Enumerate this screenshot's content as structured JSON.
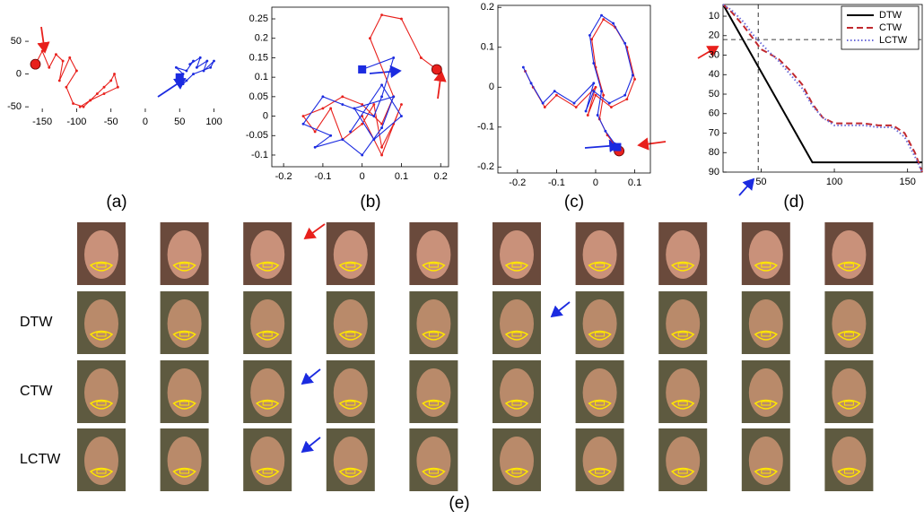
{
  "chart_data": [
    {
      "type": "line",
      "caption": "(a)",
      "box": false,
      "xlim": [
        -175,
        115
      ],
      "ylim": [
        -58,
        72
      ],
      "xticks": [
        -150,
        -100,
        -50,
        0,
        50,
        100
      ],
      "yticks": [
        -50,
        0,
        50
      ],
      "series": [
        {
          "color": "#e8201c",
          "marker": "circle",
          "x": [
            -160,
            -150,
            -140,
            -130,
            -120,
            -125,
            -110,
            -100,
            -115,
            -105,
            -90,
            -80,
            -70,
            -60,
            -50,
            -45,
            -40,
            -60,
            -80,
            -95
          ],
          "values": [
            15,
            35,
            10,
            30,
            20,
            -10,
            25,
            5,
            -20,
            -45,
            -50,
            -40,
            -30,
            -20,
            -10,
            0,
            -20,
            -30,
            -40,
            -50
          ]
        },
        {
          "color": "#1b2be0",
          "marker": "square",
          "x": [
            50,
            55,
            45,
            60,
            70,
            65,
            80,
            75,
            90,
            85,
            100,
            95,
            70,
            60,
            55
          ],
          "values": [
            -5,
            0,
            10,
            5,
            20,
            15,
            25,
            10,
            20,
            5,
            20,
            10,
            0,
            -10,
            -15
          ]
        }
      ]
    },
    {
      "type": "line",
      "caption": "(b)",
      "box": true,
      "xlim": [
        -0.23,
        0.22
      ],
      "ylim": [
        -0.13,
        0.28
      ],
      "xticks": [
        -0.2,
        -0.1,
        0,
        0.1,
        0.2
      ],
      "yticks": [
        -0.1,
        -0.05,
        0,
        0.05,
        0.1,
        0.15,
        0.2,
        0.25
      ],
      "series": [
        {
          "color": "#e8201c",
          "marker": "circle",
          "x": [
            0.19,
            0.15,
            0.1,
            0.05,
            0.02,
            0.08,
            0.05,
            0,
            -0.05,
            -0.1,
            -0.15,
            -0.12,
            -0.08,
            -0.05,
            0,
            0.03,
            0.05,
            0.08,
            0.1,
            0.05,
            0
          ],
          "values": [
            0.12,
            0.15,
            0.25,
            0.26,
            0.2,
            0.05,
            -0.02,
            0.03,
            0.05,
            0.02,
            0,
            -0.04,
            0.02,
            -0.06,
            -0.02,
            0.03,
            -0.08,
            -0.02,
            0.03,
            -0.1,
            0
          ]
        },
        {
          "color": "#1b2be0",
          "marker": "square",
          "x": [
            0,
            0.08,
            0.05,
            0.03,
            -0.05,
            -0.1,
            -0.15,
            -0.08,
            -0.12,
            -0.05,
            0,
            0.05,
            0.08,
            -0.02,
            0.03,
            0.1,
            0.05,
            -0.03
          ],
          "values": [
            0.12,
            0.15,
            0.05,
            0,
            0.03,
            0.05,
            -0.02,
            -0.05,
            -0.08,
            -0.06,
            -0.1,
            -0.03,
            0.05,
            0.02,
            -0.06,
            0,
            0.08,
            -0.04
          ]
        }
      ]
    },
    {
      "type": "line",
      "caption": "(c)",
      "box": true,
      "xlim": [
        -0.25,
        0.14
      ],
      "ylim": [
        -0.215,
        0.205
      ],
      "xticks": [
        -0.2,
        -0.1,
        0,
        0.1
      ],
      "yticks": [
        -0.2,
        -0.1,
        0,
        0.1,
        0.2
      ],
      "series": [
        {
          "color": "#e8201c",
          "marker": "circle",
          "x": [
            0.06,
            0.03,
            0.01,
            0.02,
            0,
            -0.01,
            0.02,
            0.05,
            0.08,
            0.1,
            0.08,
            0.04,
            0,
            -0.02,
            0,
            -0.05,
            -0.1,
            -0.13,
            -0.16,
            -0.18
          ],
          "values": [
            -0.16,
            -0.12,
            -0.08,
            -0.02,
            0.05,
            0.12,
            0.17,
            0.15,
            0.1,
            0.02,
            -0.03,
            -0.05,
            -0.02,
            -0.07,
            0,
            -0.05,
            -0.02,
            -0.05,
            0,
            0.04
          ]
        },
        {
          "color": "#1b2be0",
          "marker": "square",
          "x": [
            0.055,
            0.025,
            0.005,
            0.015,
            -0.005,
            -0.015,
            0.015,
            0.045,
            0.075,
            0.095,
            0.075,
            0.035,
            -0.005,
            -0.025,
            -0.005,
            -0.055,
            -0.105,
            -0.135,
            -0.165,
            -0.185
          ],
          "values": [
            -0.15,
            -0.11,
            -0.07,
            -0.01,
            0.06,
            0.13,
            0.18,
            0.16,
            0.11,
            0.03,
            -0.02,
            -0.04,
            -0.01,
            -0.06,
            0.01,
            -0.04,
            -0.01,
            -0.04,
            0.01,
            0.05
          ]
        }
      ]
    },
    {
      "type": "line",
      "caption": "(d)",
      "box": true,
      "y_reversed": true,
      "legend": "upper right",
      "xlim": [
        24,
        160
      ],
      "ylim": [
        4,
        90
      ],
      "xticks": [
        50,
        100,
        150
      ],
      "yticks": [
        10,
        20,
        30,
        40,
        50,
        60,
        70,
        80,
        90
      ],
      "reference": {
        "x": 48,
        "y": 22
      },
      "series": [
        {
          "name": "DTW",
          "color": "#000000",
          "dash": "solid",
          "x": [
            24,
            85,
            160
          ],
          "values": [
            4,
            85,
            85
          ]
        },
        {
          "name": "CTW",
          "color": "#c0282e",
          "dash": "dashed",
          "x": [
            24,
            30,
            38,
            45,
            50,
            55,
            62,
            70,
            78,
            85,
            92,
            100,
            110,
            120,
            130,
            140,
            148,
            155,
            160
          ],
          "values": [
            4,
            8,
            15,
            22,
            27,
            29,
            32,
            38,
            45,
            55,
            62,
            65,
            65,
            65,
            66,
            66,
            70,
            80,
            90
          ]
        },
        {
          "name": "LCTW",
          "color": "#6a6ad8",
          "dash": "dotted",
          "x": [
            24,
            30,
            38,
            45,
            50,
            55,
            62,
            70,
            78,
            85,
            92,
            100,
            110,
            120,
            130,
            140,
            148,
            155,
            160
          ],
          "values": [
            4,
            7,
            13,
            20,
            24,
            28,
            33,
            40,
            47,
            56,
            62,
            66,
            66,
            66,
            67,
            67,
            72,
            82,
            90
          ]
        }
      ]
    }
  ],
  "faces": {
    "row_labels": [
      "DTW",
      "CTW",
      "LCTW"
    ],
    "caption": "(e)"
  }
}
